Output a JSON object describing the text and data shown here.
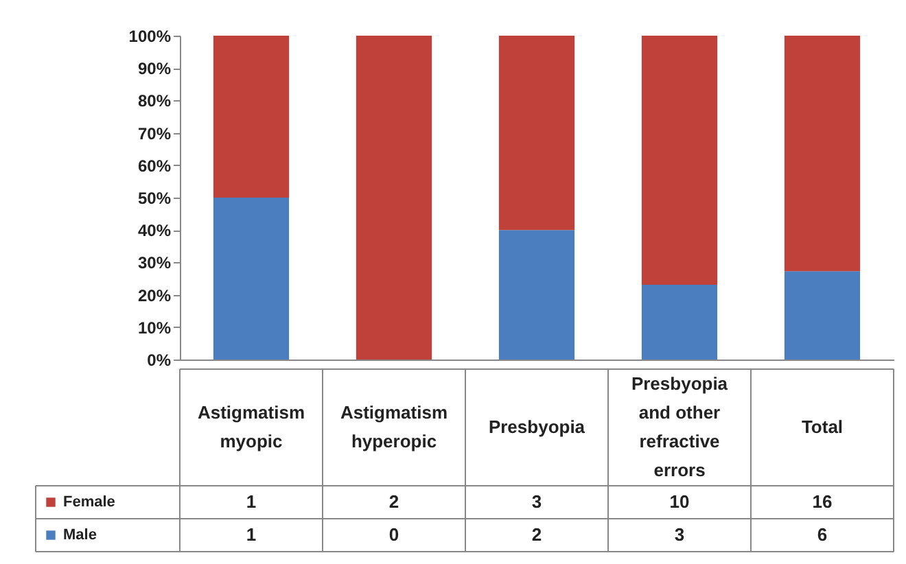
{
  "chart_data": {
    "type": "bar",
    "stacked": true,
    "legend": "bottom",
    "grid": false,
    "categories": [
      "Astigmatism myopic",
      "Astigmatism hyperopic",
      "Presbyopia",
      "Presbyopia and other refractive errors",
      "Total"
    ],
    "series": [
      {
        "name": "Male",
        "color": "#4a7ebf",
        "values": [
          50,
          0,
          40,
          23.1,
          27.3
        ]
      },
      {
        "name": "Female",
        "color": "#c0403a",
        "values": [
          50,
          100,
          60,
          76.9,
          72.7
        ]
      }
    ],
    "ylim": [
      0,
      100
    ],
    "yticks": [
      {
        "value": 0,
        "label": "0%"
      },
      {
        "value": 10,
        "label": "10%"
      },
      {
        "value": 20,
        "label": "20%"
      },
      {
        "value": 30,
        "label": "30%"
      },
      {
        "value": 40,
        "label": "40%"
      },
      {
        "value": 50,
        "label": "50%"
      },
      {
        "value": 60,
        "label": "60%"
      },
      {
        "value": 70,
        "label": "70%"
      },
      {
        "value": 80,
        "label": "80%"
      },
      {
        "value": 90,
        "label": "90%"
      },
      {
        "value": 100,
        "label": "100%"
      }
    ],
    "annotations": [
      "1",
      "2",
      "3",
      "10",
      "16",
      "1",
      "0",
      "2",
      "3",
      "6"
    ]
  }
}
